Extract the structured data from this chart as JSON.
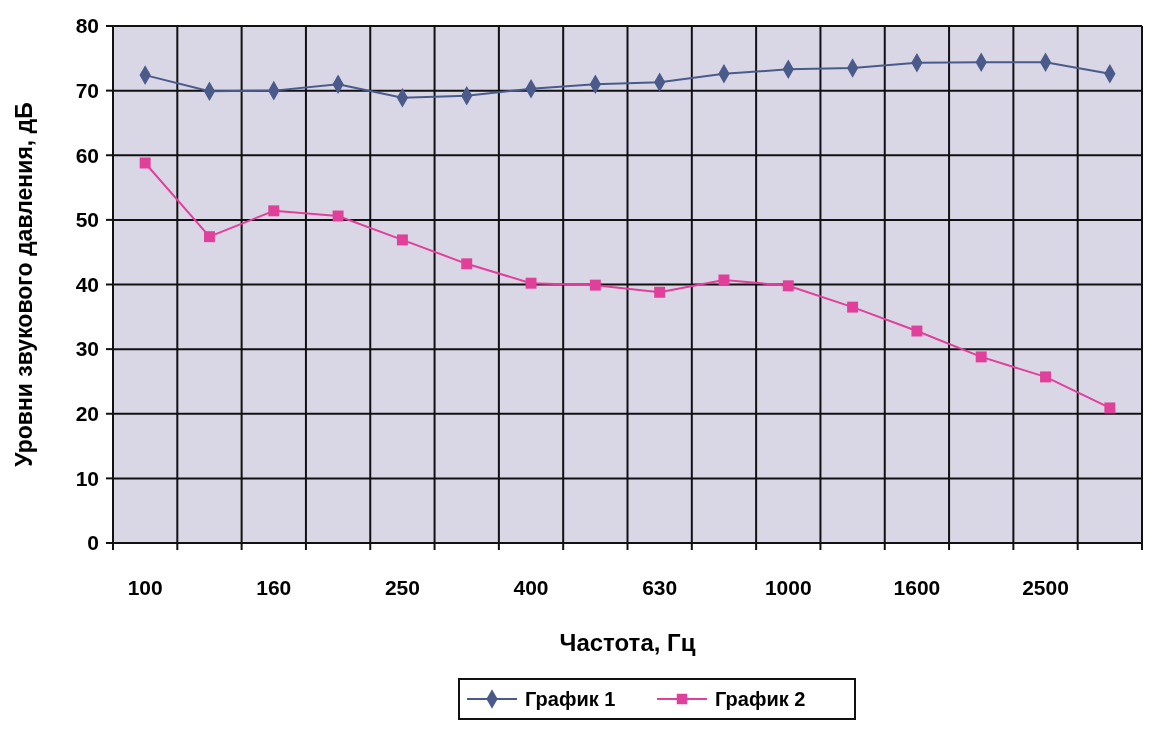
{
  "chart_data": {
    "type": "line",
    "xlabel": "Частота, Гц",
    "ylabel": "Уровни звукового давления, дБ",
    "categories": [
      "100",
      null,
      "160",
      null,
      "250",
      null,
      "400",
      null,
      "630",
      null,
      "1000",
      null,
      "1600",
      null,
      "2500",
      null
    ],
    "series": [
      {
        "name": "График 1",
        "color": "#4a5a8a",
        "marker": "diamond",
        "values": [
          72.4,
          69.9,
          70.0,
          71.0,
          68.9,
          69.2,
          70.3,
          71.0,
          71.3,
          72.6,
          73.3,
          73.5,
          74.3,
          74.4,
          74.4,
          72.6
        ]
      },
      {
        "name": "График 2",
        "color": "#e0409a",
        "marker": "square",
        "values": [
          58.8,
          47.4,
          51.4,
          50.6,
          46.9,
          43.2,
          40.2,
          39.9,
          38.8,
          40.7,
          39.8,
          36.5,
          32.8,
          28.8,
          25.7,
          20.9
        ]
      }
    ],
    "ylim": [
      0,
      80
    ],
    "yticks": [
      0,
      10,
      20,
      30,
      40,
      50,
      60,
      70,
      80
    ],
    "grid": true,
    "legend": "bottom"
  }
}
